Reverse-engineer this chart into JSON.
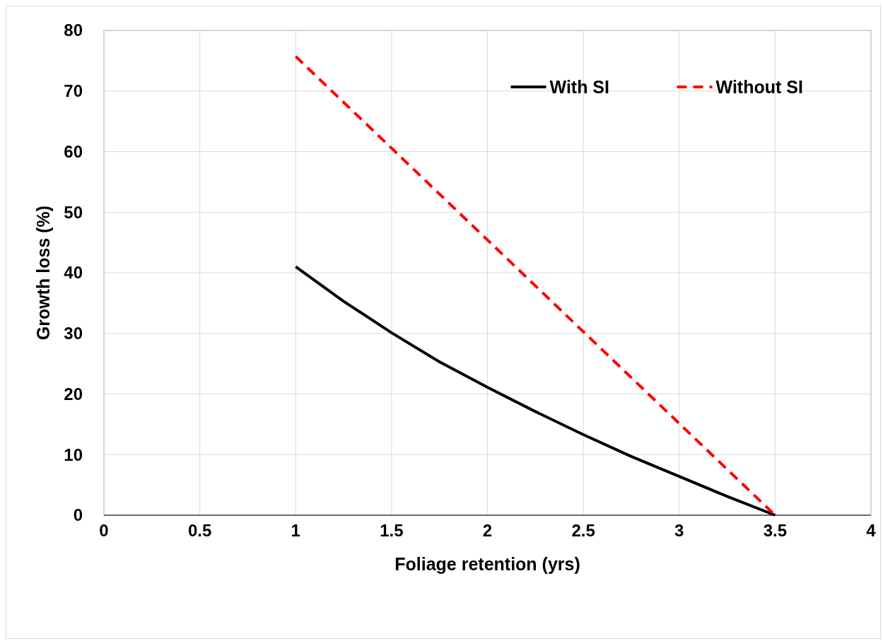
{
  "chart_data": {
    "type": "line",
    "xlabel": "Foliage retention (yrs)",
    "ylabel": "Growth loss (%)",
    "xlim": [
      0,
      4
    ],
    "xticks": [
      0,
      0.5,
      1,
      1.5,
      2,
      2.5,
      3,
      3.5,
      4
    ],
    "ylim": [
      0,
      80
    ],
    "yticks": [
      0,
      10,
      20,
      30,
      40,
      50,
      60,
      70,
      80
    ],
    "grid": true,
    "legend": "top",
    "marker": "none",
    "series": [
      {
        "name": "With SI",
        "color": "#000000",
        "line_style": "solid",
        "x": [
          1,
          1.25,
          1.5,
          1.75,
          2,
          2.25,
          2.5,
          2.75,
          3,
          3.25,
          3.5
        ],
        "values": [
          41,
          35.3,
          30.1,
          25.3,
          21.1,
          17.1,
          13.3,
          9.7,
          6.4,
          3.1,
          0
        ]
      },
      {
        "name": "Without SI",
        "color": "#ff0000",
        "line_style": "dashed",
        "x": [
          1,
          3.5
        ],
        "values": [
          75.7,
          0
        ]
      }
    ]
  }
}
